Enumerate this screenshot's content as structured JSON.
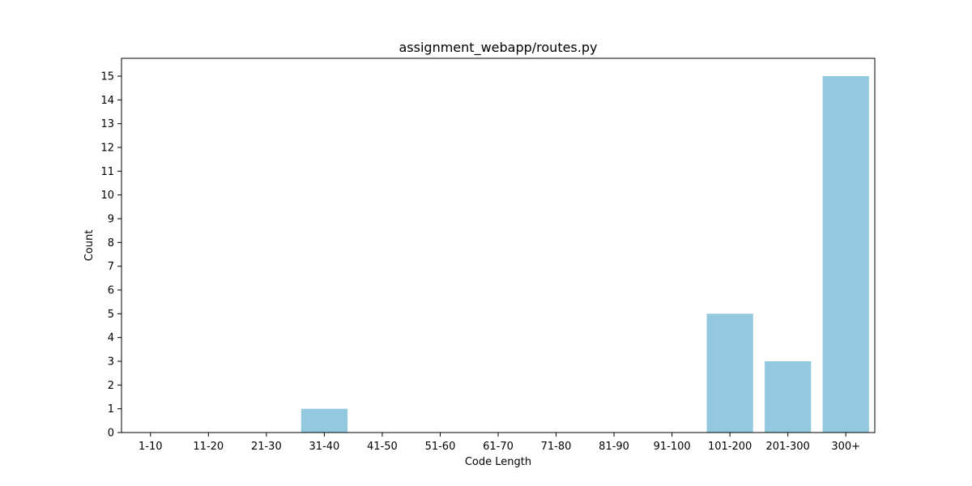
{
  "chart_data": {
    "type": "bar",
    "title": "assignment_webapp/routes.py",
    "xlabel": "Code Length",
    "ylabel": "Count",
    "categories": [
      "1-10",
      "11-20",
      "21-30",
      "31-40",
      "41-50",
      "51-60",
      "61-70",
      "71-80",
      "81-90",
      "91-100",
      "101-200",
      "201-300",
      "300+"
    ],
    "values": [
      0,
      0,
      0,
      1,
      0,
      0,
      0,
      0,
      0,
      0,
      5,
      3,
      15
    ],
    "ylim": [
      0,
      15.75
    ],
    "yticks": [
      0,
      1,
      2,
      3,
      4,
      5,
      6,
      7,
      8,
      9,
      10,
      11,
      12,
      13,
      14,
      15
    ],
    "bar_color": "#92c9de",
    "grid": false,
    "legend": "none"
  }
}
